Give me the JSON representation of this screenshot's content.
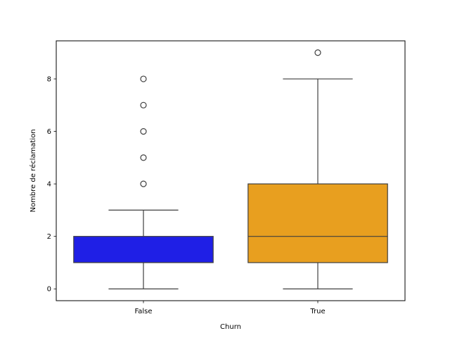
{
  "chart_data": {
    "type": "box",
    "xlabel": "Churn",
    "ylabel": "Nombre de réclamation",
    "categories": [
      "False",
      "True"
    ],
    "ylim": [
      -0.45,
      9.45
    ],
    "yticks": [
      0,
      2,
      4,
      6,
      8
    ],
    "grid": false,
    "boxes": [
      {
        "category": "False",
        "color": "#1f1fe6",
        "whisker_low": 0,
        "q1": 1,
        "median": 1,
        "q3": 2,
        "whisker_high": 3,
        "outliers": [
          4,
          5,
          6,
          7,
          8
        ]
      },
      {
        "category": "True",
        "color": "#e89f1f",
        "whisker_low": 0,
        "q1": 1,
        "median": 2,
        "q3": 4,
        "whisker_high": 8,
        "outliers": [
          9
        ]
      }
    ]
  }
}
